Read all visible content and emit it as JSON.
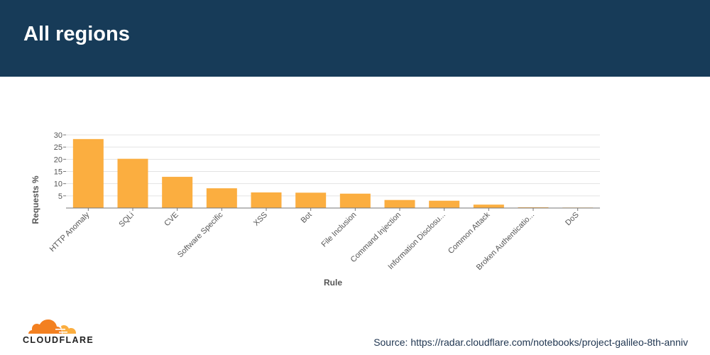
{
  "header": {
    "title": "All regions"
  },
  "footer": {
    "logo_text": "CLOUDFLARE",
    "source": "Source: https://radar.cloudflare.com/notebooks/project-galileo-8th-anniv"
  },
  "colors": {
    "header_bg": "#173b58",
    "bar": "#fbae40",
    "logo_orange": "#f38020",
    "logo_light": "#fbae40"
  },
  "chart_data": {
    "type": "bar",
    "title": "",
    "xlabel": "Rule",
    "ylabel": "Requests %",
    "ylim": [
      0,
      30
    ],
    "yticks": [
      30,
      25,
      20,
      15,
      10,
      5
    ],
    "grid": true,
    "categories": [
      "HTTP Anomaly",
      "SQLi",
      "CVE",
      "Software Specific",
      "XSS",
      "Bot",
      "File Inclusion",
      "Command Injection",
      "Information Disclosu...",
      "Common Attack",
      "Broken Authenticatio...",
      "DoS"
    ],
    "values": [
      28.3,
      20.2,
      12.8,
      8.1,
      6.4,
      6.3,
      5.9,
      3.3,
      3.0,
      1.4,
      0.3,
      0.2
    ]
  }
}
